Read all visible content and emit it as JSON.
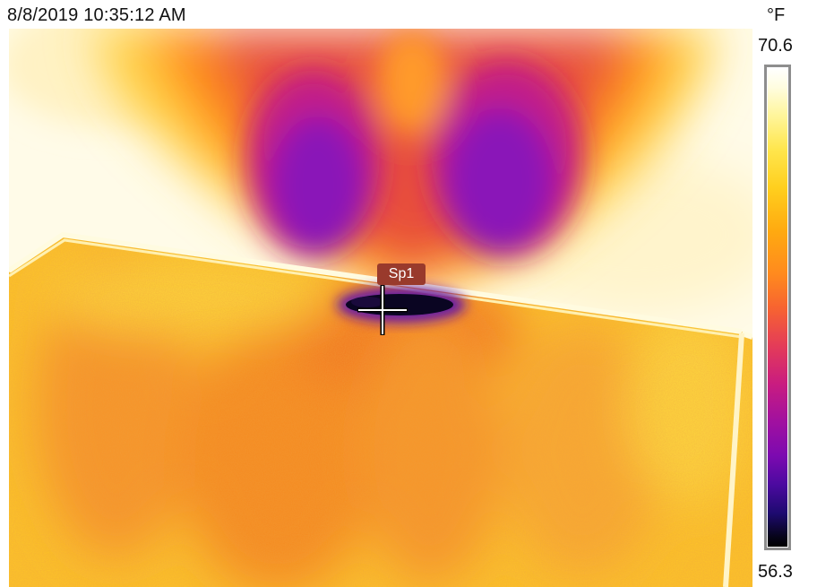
{
  "header": {
    "timestamp": "8/8/2019 10:35:12 AM",
    "unit": "°F"
  },
  "scale": {
    "max": "70.6",
    "min": "56.3",
    "palette": "ironbow",
    "colors": [
      "#000000",
      "#1e0a70",
      "#7c0ab0",
      "#c91c80",
      "#f76430",
      "#ffaa10",
      "#ffe64d",
      "#ffffff"
    ]
  },
  "spot": {
    "label": "Sp1"
  },
  "image": {
    "scene": "thermal-image-ceiling-vent",
    "colors": {
      "background_hot": "#fffbe8",
      "panel": "#fbc12a",
      "panel_warm": "#f68f24",
      "plume_outer": "#ff8a14",
      "plume_core": "#9b1bc0",
      "vent_cold": "#0a0522"
    }
  }
}
